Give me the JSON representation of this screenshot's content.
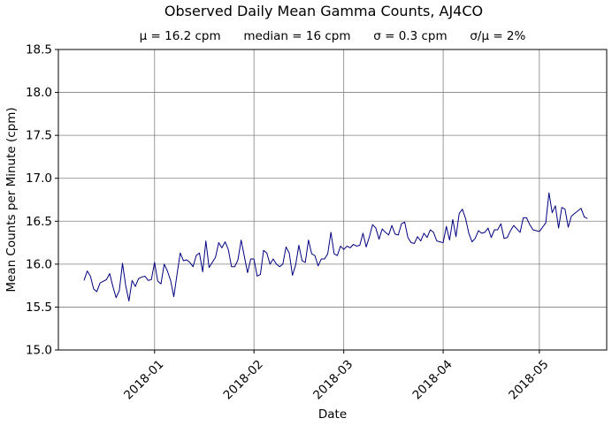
{
  "chart_data": {
    "type": "line",
    "title": "Observed Daily Mean Gamma Counts, AJ4CO",
    "subtitle": "μ = 16.2 cpm      median = 16 cpm      σ = 0.3 cpm      σ/μ = 2%",
    "xlabel": "Date",
    "ylabel": "Mean Counts per Minute (cpm)",
    "ylim": [
      15.0,
      18.5
    ],
    "yticks": [
      "15.0",
      "15.5",
      "16.0",
      "16.5",
      "17.0",
      "17.5",
      "18.0",
      "18.5"
    ],
    "xlim": [
      "2017-12-02",
      "2018-05-22"
    ],
    "xticks": [
      "2018-01",
      "2018-02",
      "2018-03",
      "2018-04",
      "2018-05"
    ],
    "grid": true,
    "line_color": "#000080",
    "series": [
      {
        "start_date": "2017-12-10",
        "values": [
          15.81,
          15.92,
          15.86,
          15.71,
          15.68,
          15.78,
          15.8,
          15.82,
          15.89,
          15.74,
          15.61,
          15.69,
          16.01,
          15.75,
          15.57,
          15.81,
          15.74,
          15.83,
          15.85,
          15.86,
          15.81,
          15.82,
          16.02,
          15.8,
          15.77,
          16.0,
          15.92,
          15.81,
          15.62,
          15.88,
          16.13,
          16.04,
          16.05,
          16.02,
          15.97,
          16.1,
          16.13,
          15.91,
          16.27,
          15.96,
          16.02,
          16.08,
          16.25,
          16.19,
          16.26,
          16.17,
          15.97,
          15.97,
          16.05,
          16.28,
          16.09,
          15.9,
          16.06,
          16.06,
          15.86,
          15.88,
          16.16,
          16.13,
          16.0,
          16.06,
          16.0,
          15.97,
          16.0,
          16.2,
          16.13,
          15.87,
          15.99,
          16.22,
          16.04,
          16.02,
          16.28,
          16.12,
          16.1,
          15.98,
          16.06,
          16.06,
          16.12,
          16.37,
          16.12,
          16.1,
          16.21,
          16.17,
          16.21,
          16.19,
          16.23,
          16.21,
          16.22,
          16.36,
          16.2,
          16.32,
          16.46,
          16.42,
          16.29,
          16.41,
          16.37,
          16.34,
          16.45,
          16.35,
          16.34,
          16.47,
          16.49,
          16.31,
          16.25,
          16.24,
          16.32,
          16.27,
          16.36,
          16.31,
          16.4,
          16.37,
          16.27,
          16.26,
          16.25,
          16.44,
          16.28,
          16.52,
          16.32,
          16.59,
          16.64,
          16.53,
          16.36,
          16.26,
          16.3,
          16.39,
          16.36,
          16.37,
          16.42,
          16.31,
          16.4,
          16.4,
          16.47,
          16.3,
          16.31,
          16.39,
          16.45,
          16.41,
          16.37,
          16.54,
          16.54,
          16.46,
          16.4,
          16.39,
          16.38,
          16.43,
          16.48,
          16.83,
          16.6,
          16.68,
          16.42,
          16.66,
          16.64,
          16.43,
          16.56,
          16.59,
          16.62,
          16.65,
          16.55,
          16.53
        ]
      }
    ]
  }
}
